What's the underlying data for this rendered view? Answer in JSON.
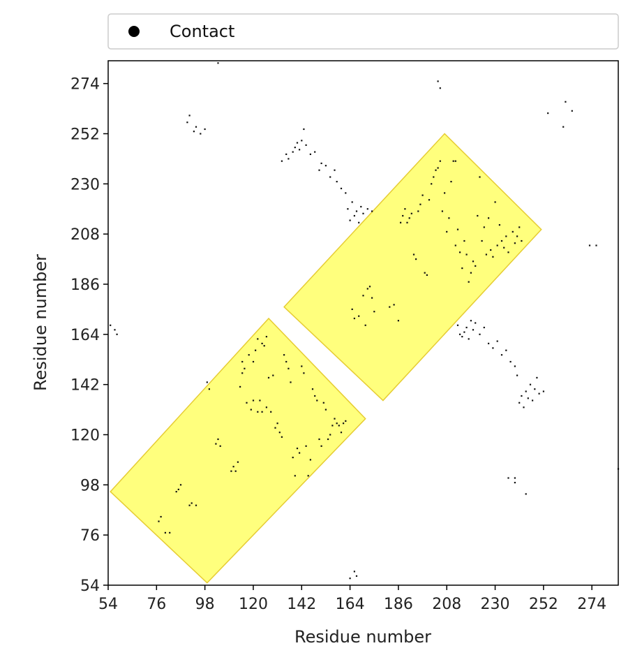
{
  "chart_data": {
    "type": "scatter",
    "title": "",
    "xlabel": "Residue number",
    "ylabel": "Residue number",
    "xlim": [
      54,
      286
    ],
    "ylim": [
      54,
      284
    ],
    "xticks": [
      54,
      76,
      98,
      120,
      142,
      164,
      186,
      208,
      230,
      252,
      274
    ],
    "yticks": [
      54,
      76,
      98,
      120,
      142,
      164,
      186,
      208,
      230,
      252,
      274
    ],
    "grid": false,
    "legend": {
      "position": "top",
      "entries": [
        "Contact"
      ]
    },
    "colors": {
      "points": "#111111",
      "highlight_fill": "#ffff66",
      "highlight_stroke": "#e6cc33"
    },
    "highlight_regions": [
      {
        "corners": [
          [
            55,
            95
          ],
          [
            99,
            55
          ],
          [
            171,
            127
          ],
          [
            127,
            171
          ]
        ]
      },
      {
        "corners": [
          [
            134,
            176
          ],
          [
            179,
            135
          ],
          [
            251,
            210
          ],
          [
            207,
            252
          ]
        ]
      }
    ],
    "series": [
      {
        "name": "Contact",
        "points": [
          [
            77,
            82
          ],
          [
            78,
            84
          ],
          [
            80,
            77
          ],
          [
            82,
            77
          ],
          [
            85,
            95
          ],
          [
            86,
            96
          ],
          [
            87,
            98
          ],
          [
            91,
            89
          ],
          [
            92,
            90
          ],
          [
            94,
            89
          ],
          [
            99,
            143
          ],
          [
            100,
            140
          ],
          [
            103,
            116
          ],
          [
            104,
            118
          ],
          [
            105,
            115
          ],
          [
            110,
            104
          ],
          [
            111,
            106
          ],
          [
            112,
            104
          ],
          [
            113,
            108
          ],
          [
            114,
            141
          ],
          [
            115,
            147
          ],
          [
            115,
            152
          ],
          [
            116,
            149
          ],
          [
            117,
            134
          ],
          [
            118,
            155
          ],
          [
            119,
            131
          ],
          [
            120,
            152
          ],
          [
            120,
            135
          ],
          [
            121,
            157
          ],
          [
            122,
            130
          ],
          [
            122,
            162
          ],
          [
            123,
            135
          ],
          [
            124,
            160
          ],
          [
            124,
            130
          ],
          [
            125,
            159
          ],
          [
            126,
            163
          ],
          [
            126,
            132
          ],
          [
            127,
            145
          ],
          [
            128,
            130
          ],
          [
            129,
            146
          ],
          [
            130,
            123
          ],
          [
            131,
            125
          ],
          [
            132,
            121
          ],
          [
            133,
            119
          ],
          [
            134,
            155
          ],
          [
            135,
            152
          ],
          [
            136,
            149
          ],
          [
            137,
            143
          ],
          [
            138,
            110
          ],
          [
            139,
            102
          ],
          [
            140,
            114
          ],
          [
            141,
            112
          ],
          [
            142,
            150
          ],
          [
            143,
            147
          ],
          [
            144,
            115
          ],
          [
            145,
            102
          ],
          [
            146,
            109
          ],
          [
            147,
            140
          ],
          [
            148,
            137
          ],
          [
            149,
            135
          ],
          [
            150,
            118
          ],
          [
            151,
            115
          ],
          [
            152,
            134
          ],
          [
            153,
            131
          ],
          [
            154,
            118
          ],
          [
            155,
            120
          ],
          [
            156,
            124
          ],
          [
            157,
            127
          ],
          [
            158,
            125
          ],
          [
            159,
            124
          ],
          [
            160,
            121
          ],
          [
            161,
            125
          ],
          [
            162,
            126
          ],
          [
            165,
            175
          ],
          [
            166,
            171
          ],
          [
            168,
            172
          ],
          [
            170,
            181
          ],
          [
            171,
            168
          ],
          [
            172,
            184
          ],
          [
            173,
            185
          ],
          [
            174,
            180
          ],
          [
            175,
            174
          ],
          [
            182,
            176
          ],
          [
            184,
            177
          ],
          [
            186,
            170
          ],
          [
            187,
            213
          ],
          [
            188,
            216
          ],
          [
            189,
            219
          ],
          [
            190,
            213
          ],
          [
            191,
            215
          ],
          [
            192,
            217
          ],
          [
            193,
            199
          ],
          [
            194,
            197
          ],
          [
            195,
            218
          ],
          [
            196,
            221
          ],
          [
            197,
            225
          ],
          [
            198,
            191
          ],
          [
            199,
            190
          ],
          [
            200,
            223
          ],
          [
            201,
            230
          ],
          [
            202,
            233
          ],
          [
            203,
            236
          ],
          [
            204,
            237
          ],
          [
            205,
            240
          ],
          [
            206,
            218
          ],
          [
            207,
            226
          ],
          [
            208,
            209
          ],
          [
            209,
            215
          ],
          [
            210,
            231
          ],
          [
            211,
            240
          ],
          [
            212,
            240
          ],
          [
            212,
            203
          ],
          [
            213,
            210
          ],
          [
            214,
            200
          ],
          [
            215,
            193
          ],
          [
            216,
            205
          ],
          [
            217,
            199
          ],
          [
            218,
            187
          ],
          [
            219,
            191
          ],
          [
            220,
            196
          ],
          [
            221,
            194
          ],
          [
            222,
            216
          ],
          [
            223,
            233
          ],
          [
            224,
            205
          ],
          [
            225,
            211
          ],
          [
            226,
            199
          ],
          [
            227,
            215
          ],
          [
            228,
            201
          ],
          [
            229,
            198
          ],
          [
            230,
            222
          ],
          [
            231,
            203
          ],
          [
            232,
            212
          ],
          [
            233,
            205
          ],
          [
            234,
            202
          ],
          [
            235,
            207
          ],
          [
            236,
            200
          ],
          [
            238,
            209
          ],
          [
            239,
            204
          ],
          [
            240,
            207
          ],
          [
            241,
            211
          ],
          [
            242,
            205
          ],
          [
            133,
            240
          ],
          [
            135,
            243
          ],
          [
            136,
            241
          ],
          [
            138,
            244
          ],
          [
            139,
            246
          ],
          [
            140,
            248
          ],
          [
            141,
            245
          ],
          [
            142,
            249
          ],
          [
            143,
            254
          ],
          [
            144,
            247
          ],
          [
            146,
            243
          ],
          [
            148,
            244
          ],
          [
            150,
            236
          ],
          [
            151,
            239
          ],
          [
            153,
            238
          ],
          [
            155,
            233
          ],
          [
            157,
            236
          ],
          [
            158,
            231
          ],
          [
            160,
            228
          ],
          [
            162,
            226
          ],
          [
            163,
            219
          ],
          [
            164,
            214
          ],
          [
            165,
            222
          ],
          [
            166,
            216
          ],
          [
            167,
            218
          ],
          [
            168,
            213
          ],
          [
            169,
            220
          ],
          [
            170,
            217
          ],
          [
            172,
            219
          ],
          [
            174,
            218
          ],
          [
            213,
            168
          ],
          [
            214,
            164
          ],
          [
            215,
            163
          ],
          [
            216,
            165
          ],
          [
            217,
            167
          ],
          [
            218,
            162
          ],
          [
            219,
            170
          ],
          [
            220,
            166
          ],
          [
            221,
            169
          ],
          [
            223,
            164
          ],
          [
            225,
            167
          ],
          [
            227,
            160
          ],
          [
            229,
            158
          ],
          [
            231,
            161
          ],
          [
            233,
            155
          ],
          [
            235,
            157
          ],
          [
            237,
            152
          ],
          [
            239,
            150
          ],
          [
            240,
            146
          ],
          [
            241,
            134
          ],
          [
            242,
            137
          ],
          [
            243,
            132
          ],
          [
            244,
            139
          ],
          [
            245,
            136
          ],
          [
            246,
            142
          ],
          [
            247,
            135
          ],
          [
            248,
            140
          ],
          [
            249,
            145
          ],
          [
            250,
            138
          ],
          [
            252,
            139
          ],
          [
            90,
            257
          ],
          [
            91,
            260
          ],
          [
            93,
            253
          ],
          [
            94,
            255
          ],
          [
            96,
            252
          ],
          [
            98,
            254
          ],
          [
            55,
            168
          ],
          [
            57,
            166
          ],
          [
            58,
            164
          ],
          [
            204,
            275
          ],
          [
            205,
            272
          ],
          [
            254,
            261
          ],
          [
            261,
            255
          ],
          [
            262,
            266
          ],
          [
            265,
            262
          ],
          [
            273,
            203
          ],
          [
            276,
            203
          ],
          [
            286,
            105
          ],
          [
            236,
            101
          ],
          [
            239,
            99
          ],
          [
            239,
            101
          ],
          [
            244,
            94
          ],
          [
            164,
            57
          ],
          [
            166,
            60
          ],
          [
            167,
            58
          ],
          [
            172,
            53
          ],
          [
            104,
            283
          ]
        ]
      }
    ]
  }
}
